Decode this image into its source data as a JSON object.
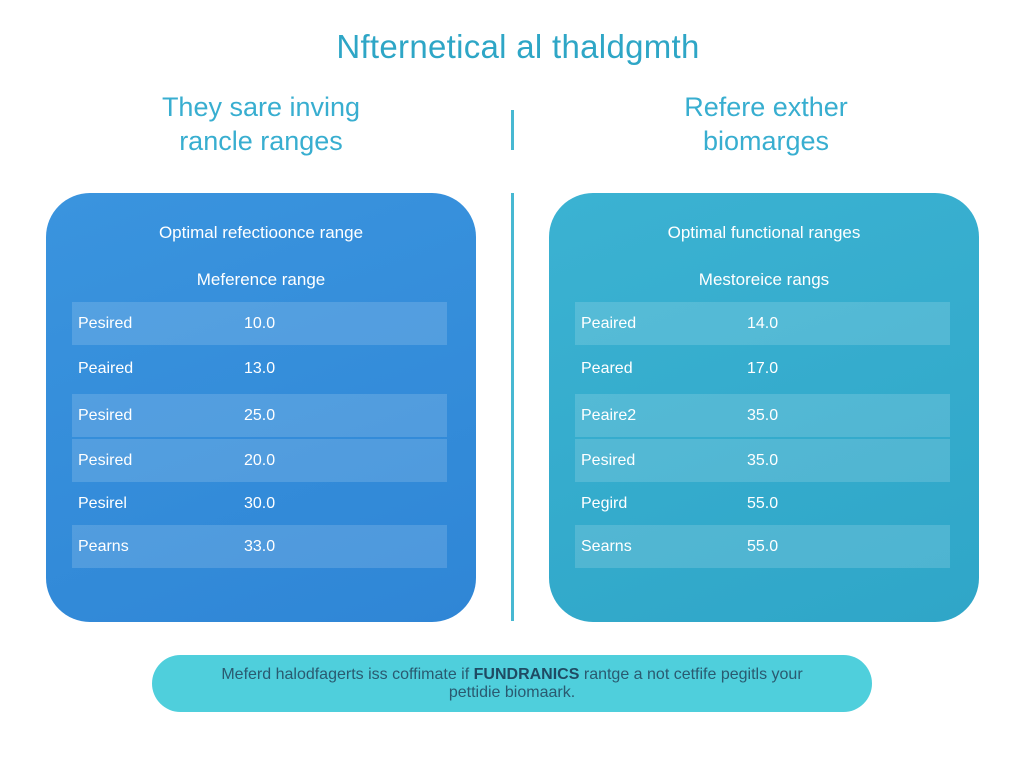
{
  "header": {
    "title": "Nfternetical al thaldgmth"
  },
  "panels": [
    {
      "heading": [
        "They sare inving",
        "rancle ranges"
      ],
      "card_title": "Optimal refectioonce range",
      "card_subtitle": "Meference range",
      "rows": [
        [
          "Pesired",
          "10.0"
        ],
        [
          "Peaired",
          "13.0"
        ],
        [
          "Pesired",
          "25.0"
        ],
        [
          "Pesired",
          "20.0"
        ],
        [
          "Pesirel",
          "30.0"
        ],
        [
          "Pearns",
          "33.0"
        ]
      ]
    },
    {
      "heading": [
        "Refere exther",
        "biomarges"
      ],
      "card_title": "Optimal functional ranges",
      "card_subtitle": "Mestoreice rangs",
      "rows": [
        [
          "Peaired",
          "14.0"
        ],
        [
          "Peared",
          "17.0"
        ],
        [
          "Peaire2",
          "35.0"
        ],
        [
          "Pesired",
          "35.0"
        ],
        [
          "Pegird",
          "55.0"
        ],
        [
          "Searns",
          "55.0"
        ]
      ]
    }
  ],
  "footer": {
    "before": "Meferd halodfagerts iss coffimate if",
    "emphasis": "FUNDRANICS",
    "after": "rantge a not cetfife pegitls your pettidie biomaark."
  }
}
